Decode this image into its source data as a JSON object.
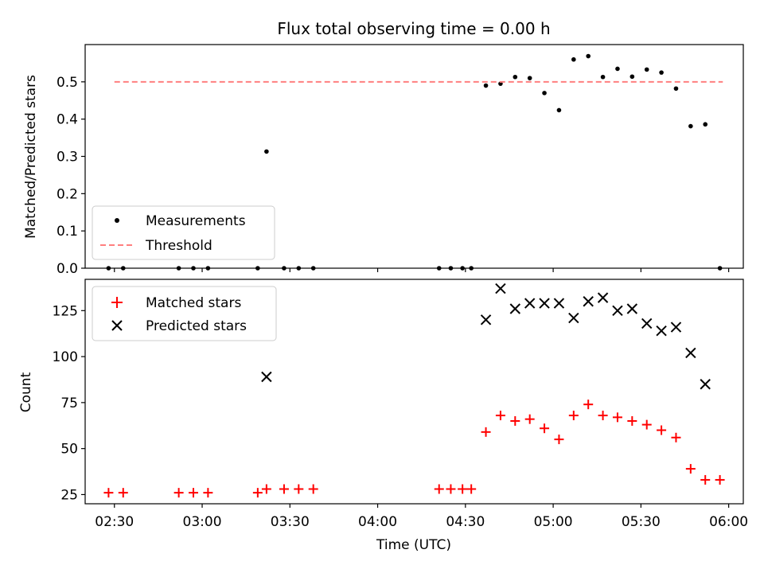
{
  "chart_data": [
    {
      "type": "scatter",
      "title": "Flux total observing time = 0.00 h",
      "xlabel": "",
      "ylabel": "Matched/Predicted stars",
      "xlim": [
        "02:20",
        "06:05"
      ],
      "ylim": [
        0,
        0.6
      ],
      "yticks": [
        "0.0",
        "0.1",
        "0.2",
        "0.3",
        "0.4",
        "0.5"
      ],
      "xticks": [
        "02:30",
        "03:00",
        "03:30",
        "04:00",
        "04:30",
        "05:00",
        "05:30",
        "06:00"
      ],
      "legend": {
        "position": "lower-left",
        "entries": [
          "Measurements",
          "Threshold"
        ]
      },
      "series": [
        {
          "name": "Measurements",
          "marker": "dot",
          "color": "#000000",
          "points": [
            [
              "02:28",
              0.0
            ],
            [
              "02:33",
              0.0
            ],
            [
              "02:52",
              0.0
            ],
            [
              "02:57",
              0.0
            ],
            [
              "03:02",
              0.0
            ],
            [
              "03:19",
              0.0
            ],
            [
              "03:22",
              0.313
            ],
            [
              "03:28",
              0.0
            ],
            [
              "03:33",
              0.0
            ],
            [
              "03:38",
              0.0
            ],
            [
              "04:21",
              0.0
            ],
            [
              "04:25",
              0.0
            ],
            [
              "04:29",
              0.0
            ],
            [
              "04:32",
              0.0
            ],
            [
              "04:37",
              0.49
            ],
            [
              "04:42",
              0.495
            ],
            [
              "04:47",
              0.513
            ],
            [
              "04:52",
              0.51
            ],
            [
              "04:57",
              0.47
            ],
            [
              "05:02",
              0.424
            ],
            [
              "05:07",
              0.56
            ],
            [
              "05:12",
              0.569
            ],
            [
              "05:17",
              0.513
            ],
            [
              "05:22",
              0.535
            ],
            [
              "05:27",
              0.514
            ],
            [
              "05:32",
              0.533
            ],
            [
              "05:37",
              0.525
            ],
            [
              "05:42",
              0.482
            ],
            [
              "05:47",
              0.381
            ],
            [
              "05:52",
              0.386
            ],
            [
              "05:57",
              0.0
            ]
          ]
        },
        {
          "name": "Threshold",
          "line": "dashed",
          "color": "#ff7f7f",
          "points": [
            [
              "02:30",
              0.5
            ],
            [
              "05:58",
              0.5
            ]
          ]
        }
      ]
    },
    {
      "type": "scatter",
      "title": "",
      "xlabel": "Time (UTC)",
      "ylabel": "Count",
      "xlim": [
        "02:20",
        "06:05"
      ],
      "ylim": [
        20,
        142
      ],
      "yticks": [
        "25",
        "50",
        "75",
        "100",
        "125"
      ],
      "xticks": [
        "02:30",
        "03:00",
        "03:30",
        "04:00",
        "04:30",
        "05:00",
        "05:30",
        "06:00"
      ],
      "legend": {
        "position": "upper-left",
        "entries": [
          "Matched stars",
          "Predicted stars"
        ]
      },
      "series": [
        {
          "name": "Matched stars",
          "marker": "plus",
          "color": "#ff0000",
          "points": [
            [
              "02:28",
              26
            ],
            [
              "02:33",
              26
            ],
            [
              "02:52",
              26
            ],
            [
              "02:57",
              26
            ],
            [
              "03:02",
              26
            ],
            [
              "03:19",
              26
            ],
            [
              "03:22",
              28
            ],
            [
              "03:28",
              28
            ],
            [
              "03:33",
              28
            ],
            [
              "03:38",
              28
            ],
            [
              "04:21",
              28
            ],
            [
              "04:25",
              28
            ],
            [
              "04:29",
              28
            ],
            [
              "04:32",
              28
            ],
            [
              "04:37",
              59
            ],
            [
              "04:42",
              68
            ],
            [
              "04:47",
              65
            ],
            [
              "04:52",
              66
            ],
            [
              "04:57",
              61
            ],
            [
              "05:02",
              55
            ],
            [
              "05:07",
              68
            ],
            [
              "05:12",
              74
            ],
            [
              "05:17",
              68
            ],
            [
              "05:22",
              67
            ],
            [
              "05:27",
              65
            ],
            [
              "05:32",
              63
            ],
            [
              "05:37",
              60
            ],
            [
              "05:42",
              56
            ],
            [
              "05:47",
              39
            ],
            [
              "05:52",
              33
            ],
            [
              "05:57",
              33
            ]
          ]
        },
        {
          "name": "Predicted stars",
          "marker": "x",
          "color": "#000000",
          "points": [
            [
              "03:22",
              89
            ],
            [
              "04:37",
              120
            ],
            [
              "04:42",
              137
            ],
            [
              "04:47",
              126
            ],
            [
              "04:52",
              129
            ],
            [
              "04:57",
              129
            ],
            [
              "05:02",
              129
            ],
            [
              "05:07",
              121
            ],
            [
              "05:12",
              130
            ],
            [
              "05:17",
              132
            ],
            [
              "05:22",
              125
            ],
            [
              "05:27",
              126
            ],
            [
              "05:32",
              118
            ],
            [
              "05:37",
              114
            ],
            [
              "05:42",
              116
            ],
            [
              "05:47",
              102
            ],
            [
              "05:52",
              85
            ]
          ]
        }
      ]
    }
  ]
}
